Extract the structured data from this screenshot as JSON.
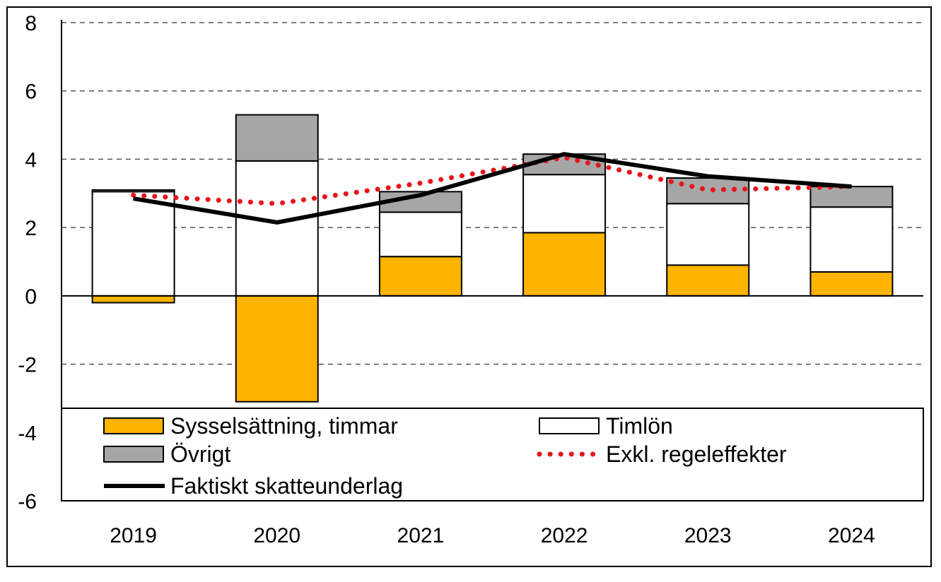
{
  "chart_data": {
    "type": "bar",
    "stacked": true,
    "categories": [
      "2019",
      "2020",
      "2021",
      "2022",
      "2023",
      "2024"
    ],
    "ylim": [
      -6,
      8
    ],
    "yticks": [
      "8",
      "6",
      "4",
      "2",
      "0",
      "-2",
      "-4",
      "-6"
    ],
    "ytick_values": [
      8,
      6,
      4,
      2,
      0,
      -2,
      -4,
      -6
    ],
    "grid": "dashed horizontal",
    "series": [
      {
        "name": "Sysselsättning, timmar",
        "kind": "bar",
        "color": "#FFB400",
        "values": [
          -0.2,
          -3.1,
          1.15,
          1.85,
          0.9,
          0.7
        ]
      },
      {
        "name": "Timlön",
        "kind": "bar",
        "color": "#FFFFFF",
        "values": [
          3.05,
          3.95,
          1.3,
          1.7,
          1.8,
          1.9
        ]
      },
      {
        "name": "Övrigt",
        "kind": "bar",
        "color": "#A6A6A6",
        "values": [
          0.05,
          1.35,
          0.6,
          0.6,
          0.75,
          0.6
        ]
      },
      {
        "name": "Exkl. regeleffekter",
        "kind": "line",
        "style": "dotted",
        "color": "#E8141C",
        "values": [
          2.95,
          2.7,
          3.3,
          4.05,
          3.1,
          3.2
        ]
      },
      {
        "name": "Faktiskt skatteunderlag",
        "kind": "line",
        "style": "solid",
        "color": "#000000",
        "values": [
          2.85,
          2.15,
          2.95,
          4.15,
          3.5,
          3.2
        ]
      }
    ],
    "legend": {
      "placement": "bottom-inside",
      "entries": [
        "Sysselsättning, timmar",
        "Timlön",
        "Övrigt",
        "Exkl. regeleffekter",
        "Faktiskt skatteunderlag"
      ]
    }
  }
}
